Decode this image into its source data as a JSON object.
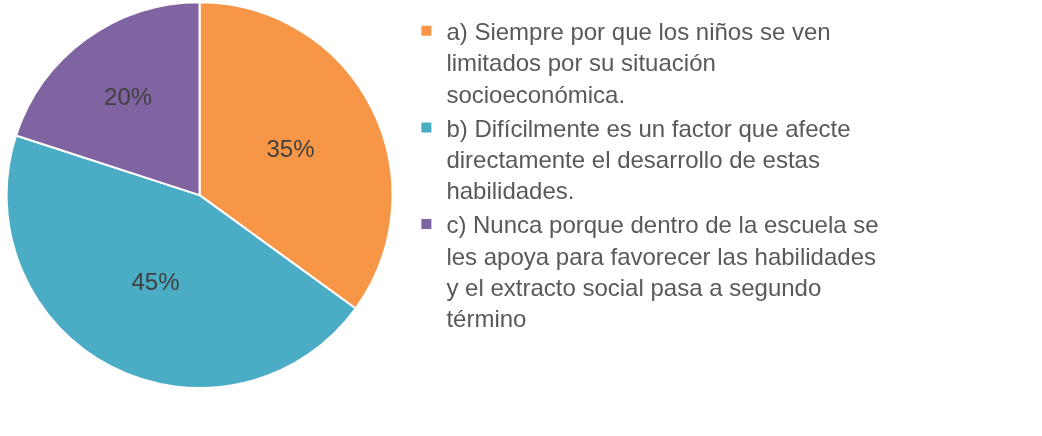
{
  "chart_data": {
    "type": "pie",
    "categories": [
      "a) Siempre por que los niños se ven limitados por su situación socioeconómica.",
      "b) Difícilmente es un factor que afecte directamente el desarrollo de estas habilidades.",
      "c) Nunca porque dentro de la escuela se les apoya para favorecer las habilidades y el extracto social pasa a segundo término"
    ],
    "values": [
      35,
      45,
      20
    ],
    "value_labels": [
      "35%",
      "45%",
      "20%"
    ],
    "colors": [
      "#f79646",
      "#4bacc6",
      "#8064a2"
    ],
    "legend": "right"
  }
}
